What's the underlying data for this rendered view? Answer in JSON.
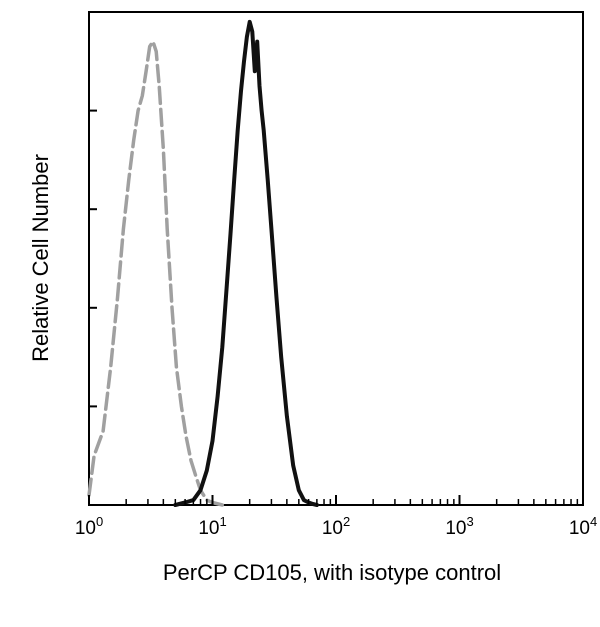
{
  "chart_data": {
    "type": "line",
    "title": "",
    "xlabel": "PerCP CD105, with isotype control",
    "ylabel": "Relative Cell Number",
    "x_scale": "log",
    "xlim": [
      1,
      10000
    ],
    "ylim": [
      0,
      100
    ],
    "x_ticks": [
      {
        "value": 1,
        "base": "10",
        "exp": "0"
      },
      {
        "value": 10,
        "base": "10",
        "exp": "1"
      },
      {
        "value": 100,
        "base": "10",
        "exp": "2"
      },
      {
        "value": 1000,
        "base": "10",
        "exp": "3"
      },
      {
        "value": 10000,
        "base": "10",
        "exp": "4"
      }
    ],
    "y_ticks": [
      0,
      20,
      40,
      60,
      80,
      100
    ],
    "grid": false,
    "series": [
      {
        "line_style": "dashed",
        "color": "#a0a0a0",
        "x": [
          1.0,
          1.1,
          1.3,
          1.5,
          1.7,
          1.9,
          2.1,
          2.3,
          2.5,
          2.7,
          2.9,
          3.1,
          3.3,
          3.5,
          3.7,
          4.0,
          4.3,
          4.7,
          5.1,
          5.6,
          6.1,
          6.7,
          7.3,
          8.0,
          9.0,
          10.0,
          12.0
        ],
        "y": [
          2,
          10,
          15,
          28,
          42,
          56,
          66,
          74,
          80,
          83,
          88,
          93,
          94,
          92,
          85,
          72,
          56,
          40,
          28,
          20,
          14,
          9,
          6,
          3,
          1,
          0.5,
          0
        ]
      },
      {
        "line_style": "solid",
        "color": "#111111",
        "x": [
          5.0,
          6.0,
          7.0,
          8.0,
          9.0,
          10.0,
          11.0,
          12.0,
          13.0,
          14.0,
          15.0,
          16.0,
          17.0,
          18.0,
          19.0,
          20.0,
          21.0,
          22.0,
          23.0,
          24.0,
          25.0,
          26.0,
          28.0,
          30.0,
          33.0,
          36.0,
          40.0,
          45.0,
          50.0,
          55.0,
          60.0,
          65.0,
          70.0
        ],
        "y": [
          0,
          0.5,
          1,
          3,
          7,
          13,
          22,
          32,
          44,
          55,
          66,
          76,
          84,
          90,
          95,
          98,
          96,
          88,
          94,
          85,
          80,
          76,
          66,
          56,
          42,
          30,
          18,
          8,
          3,
          1,
          0.5,
          0.2,
          0
        ]
      }
    ]
  }
}
